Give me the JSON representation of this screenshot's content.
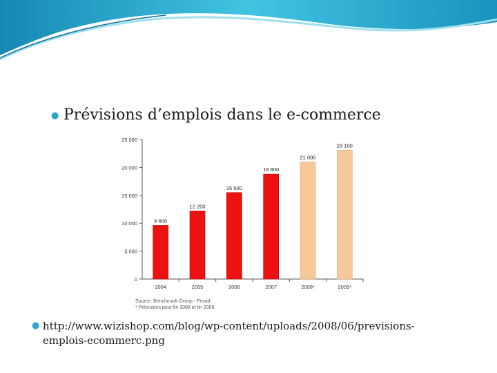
{
  "slide": {
    "title": "Prévisions d’emplois dans le e-commerce",
    "link_line1": "http://www.wizishop.com/blog/wp-content/uploads/2008/06/previsions-",
    "link_line2": "emplois-ecommerc.png",
    "bullet_icon": "teardrop-bullet-icon",
    "accent_color": "#2aa6c8"
  },
  "chart_data": {
    "type": "bar",
    "categories": [
      "2004",
      "2005",
      "2006",
      "2007",
      "2008*",
      "2009*"
    ],
    "values": [
      9600,
      12200,
      15500,
      18800,
      21000,
      23100
    ],
    "value_labels": [
      "9 600",
      "12 200",
      "15 500",
      "18 800",
      "21 000",
      "23 100"
    ],
    "forecast": [
      false,
      false,
      false,
      false,
      true,
      true
    ],
    "colors": {
      "actual": "#ee1111",
      "forecast": "#f7c99a"
    },
    "ylim": [
      0,
      25000
    ],
    "yticks": [
      0,
      5000,
      10000,
      15000,
      20000,
      25000
    ],
    "ytick_labels": [
      "0",
      "5 000",
      "10 000",
      "15 000",
      "20 000",
      "25 000"
    ],
    "grid": false,
    "source_line1": "Source: Benchmark Group - Fevad",
    "source_line2": "* Prévisions pour fin 2008 et fin 2009",
    "title": "",
    "xlabel": "",
    "ylabel": ""
  }
}
